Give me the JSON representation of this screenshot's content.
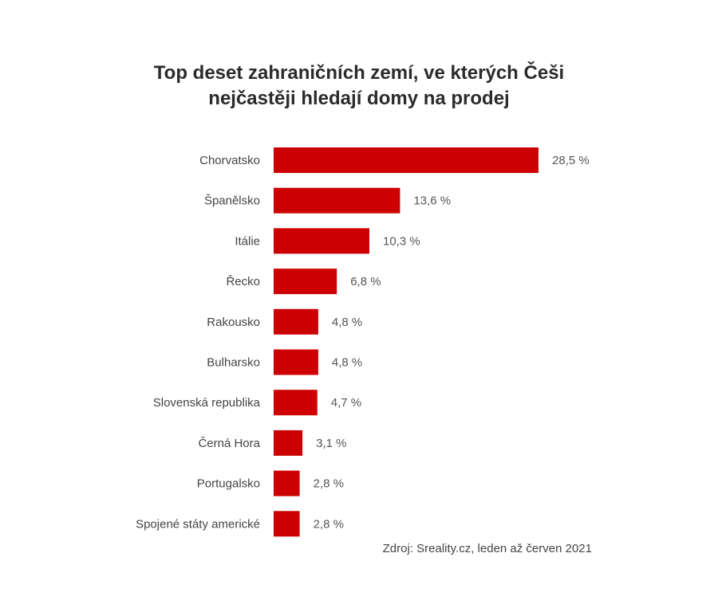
{
  "chart_data": {
    "type": "bar",
    "orientation": "horizontal",
    "title_lines": [
      "Top deset zahraničních zemí, ve kterých Češi",
      "nejčastěji hledají domy na prodej"
    ],
    "categories": [
      "Chorvatsko",
      "Španělsko",
      "Itálie",
      "Řecko",
      "Rakousko",
      "Bulharsko",
      "Slovenská republika",
      "Černá Hora",
      "Portugalsko",
      "Spojené státy americké"
    ],
    "values": [
      28.5,
      13.6,
      10.3,
      6.8,
      4.8,
      4.8,
      4.7,
      3.1,
      2.8,
      2.8
    ],
    "value_labels": [
      "28,5 %",
      "13,6 %",
      "10,3 %",
      "6,8 %",
      "4,8 %",
      "4,8 %",
      "4,7 %",
      "3,1 %",
      "2,8 %",
      "2,8 %"
    ],
    "xlim": [
      0,
      28.5
    ],
    "grid": false,
    "legend": "none",
    "bar_color": "#cc0000",
    "source": "Zdroj: Sreality.cz, leden až červen 2021"
  }
}
